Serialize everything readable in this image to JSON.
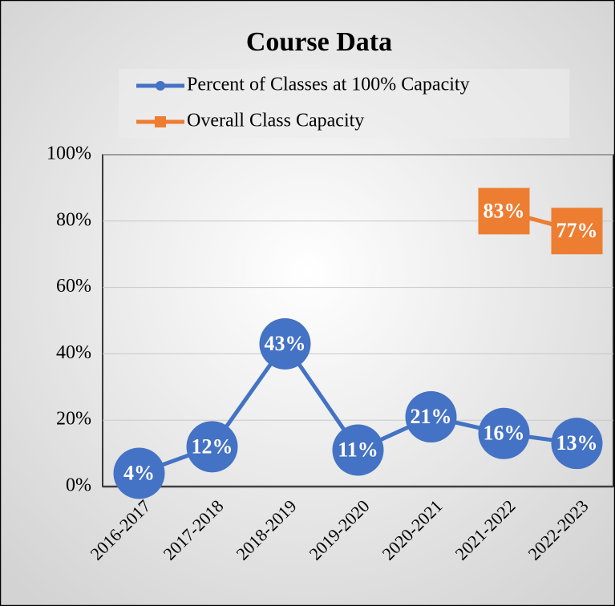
{
  "chart_data": {
    "type": "line",
    "title": "Course Data",
    "categories": [
      "2016-2017",
      "2017-2018",
      "2018-2019",
      "2019-2020",
      "2020-2021",
      "2021-2022",
      "2022-2023"
    ],
    "series": [
      {
        "name": "Percent of Classes at 100% Capacity",
        "color": "#4472c4",
        "marker": "circle",
        "values": [
          4,
          12,
          43,
          11,
          21,
          16,
          13
        ],
        "value_labels": [
          "4%",
          "12%",
          "43%",
          "11%",
          "21%",
          "16%",
          "13%"
        ]
      },
      {
        "name": "Overall Class Capacity",
        "color": "#ed7d31",
        "marker": "square",
        "values": [
          null,
          null,
          null,
          null,
          null,
          83,
          77
        ],
        "value_labels": [
          null,
          null,
          null,
          null,
          null,
          "83%",
          "77%"
        ]
      }
    ],
    "ylim": [
      0,
      100
    ],
    "yticks": [
      {
        "value": 0,
        "label": "0%"
      },
      {
        "value": 20,
        "label": "20%"
      },
      {
        "value": 40,
        "label": "40%"
      },
      {
        "value": 60,
        "label": "60%"
      },
      {
        "value": 80,
        "label": "80%"
      },
      {
        "value": 100,
        "label": "100%"
      }
    ],
    "grid": true,
    "legend": "top"
  }
}
